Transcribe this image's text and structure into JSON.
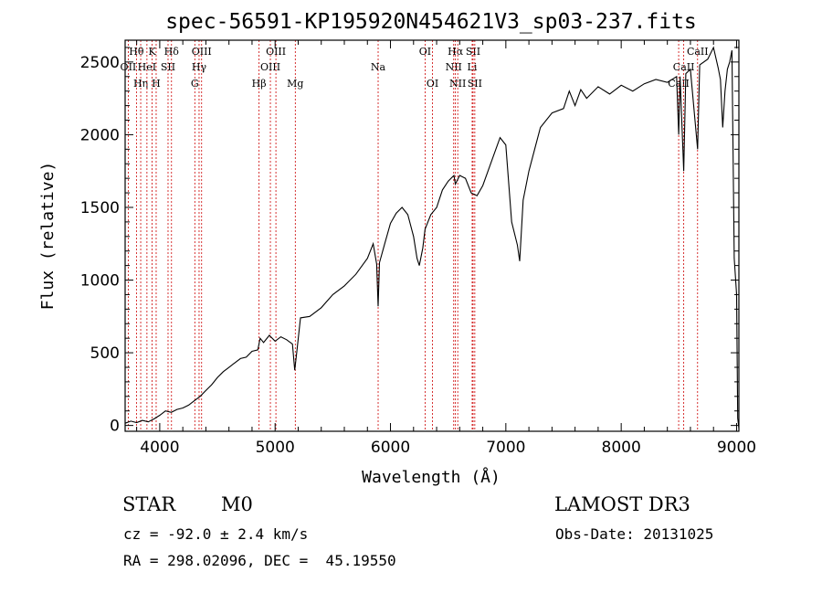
{
  "chart_data": {
    "type": "line",
    "title": "spec-56591-KP195920N454621V3_sp03-237.fits",
    "xlabel": "Wavelength (Å)",
    "ylabel": "Flux (relative)",
    "xlim": [
      3700,
      9020
    ],
    "ylim": [
      -40,
      2650
    ],
    "x_ticks": [
      4000,
      5000,
      6000,
      7000,
      8000,
      9000
    ],
    "y_ticks": [
      0,
      500,
      1000,
      1500,
      2000,
      2500
    ],
    "series": [
      {
        "name": "spectrum",
        "points": [
          [
            3700,
            15
          ],
          [
            3750,
            30
          ],
          [
            3800,
            20
          ],
          [
            3850,
            35
          ],
          [
            3900,
            25
          ],
          [
            3950,
            45
          ],
          [
            4000,
            70
          ],
          [
            4050,
            100
          ],
          [
            4100,
            90
          ],
          [
            4150,
            110
          ],
          [
            4200,
            120
          ],
          [
            4250,
            140
          ],
          [
            4300,
            170
          ],
          [
            4350,
            200
          ],
          [
            4400,
            240
          ],
          [
            4450,
            280
          ],
          [
            4500,
            330
          ],
          [
            4550,
            370
          ],
          [
            4600,
            400
          ],
          [
            4650,
            430
          ],
          [
            4700,
            460
          ],
          [
            4750,
            470
          ],
          [
            4800,
            510
          ],
          [
            4850,
            520
          ],
          [
            4870,
            600
          ],
          [
            4900,
            570
          ],
          [
            4950,
            620
          ],
          [
            5000,
            580
          ],
          [
            5050,
            610
          ],
          [
            5100,
            590
          ],
          [
            5150,
            560
          ],
          [
            5170,
            380
          ],
          [
            5190,
            520
          ],
          [
            5220,
            740
          ],
          [
            5300,
            750
          ],
          [
            5400,
            810
          ],
          [
            5500,
            900
          ],
          [
            5600,
            960
          ],
          [
            5700,
            1040
          ],
          [
            5800,
            1150
          ],
          [
            5850,
            1250
          ],
          [
            5880,
            1110
          ],
          [
            5893,
            820
          ],
          [
            5905,
            1120
          ],
          [
            5950,
            1250
          ],
          [
            6000,
            1390
          ],
          [
            6050,
            1460
          ],
          [
            6100,
            1500
          ],
          [
            6150,
            1450
          ],
          [
            6200,
            1300
          ],
          [
            6230,
            1150
          ],
          [
            6250,
            1100
          ],
          [
            6280,
            1220
          ],
          [
            6300,
            1350
          ],
          [
            6350,
            1450
          ],
          [
            6400,
            1500
          ],
          [
            6450,
            1620
          ],
          [
            6500,
            1680
          ],
          [
            6550,
            1720
          ],
          [
            6563,
            1660
          ],
          [
            6600,
            1720
          ],
          [
            6650,
            1700
          ],
          [
            6700,
            1600
          ],
          [
            6750,
            1580
          ],
          [
            6800,
            1650
          ],
          [
            6850,
            1760
          ],
          [
            6900,
            1870
          ],
          [
            6950,
            1980
          ],
          [
            7000,
            1930
          ],
          [
            7050,
            1400
          ],
          [
            7100,
            1240
          ],
          [
            7120,
            1130
          ],
          [
            7150,
            1550
          ],
          [
            7200,
            1750
          ],
          [
            7250,
            1900
          ],
          [
            7300,
            2050
          ],
          [
            7400,
            2150
          ],
          [
            7500,
            2180
          ],
          [
            7550,
            2300
          ],
          [
            7600,
            2200
          ],
          [
            7650,
            2310
          ],
          [
            7700,
            2250
          ],
          [
            7800,
            2330
          ],
          [
            7900,
            2280
          ],
          [
            8000,
            2340
          ],
          [
            8100,
            2300
          ],
          [
            8200,
            2350
          ],
          [
            8300,
            2380
          ],
          [
            8400,
            2360
          ],
          [
            8480,
            2400
          ],
          [
            8498,
            2000
          ],
          [
            8510,
            2400
          ],
          [
            8542,
            1750
          ],
          [
            8560,
            2420
          ],
          [
            8600,
            2450
          ],
          [
            8662,
            1900
          ],
          [
            8680,
            2480
          ],
          [
            8750,
            2520
          ],
          [
            8800,
            2600
          ],
          [
            8840,
            2460
          ],
          [
            8860,
            2380
          ],
          [
            8880,
            2050
          ],
          [
            8900,
            2300
          ],
          [
            8920,
            2450
          ],
          [
            8940,
            2500
          ],
          [
            8960,
            2580
          ],
          [
            8980,
            1150
          ],
          [
            9000,
            900
          ],
          [
            9010,
            50
          ],
          [
            9020,
            -20
          ]
        ]
      }
    ],
    "spectral_lines": [
      {
        "wave": 3727,
        "label": "OII",
        "row": 1
      },
      {
        "wave": 3798,
        "label": "Hθ",
        "row": 0
      },
      {
        "wave": 3835,
        "label": "Hη",
        "row": 2
      },
      {
        "wave": 3889,
        "label": "HeI",
        "row": 1
      },
      {
        "wave": 3934,
        "label": "K",
        "row": 0
      },
      {
        "wave": 3969,
        "label": "H",
        "row": 2
      },
      {
        "wave": 4072,
        "label": "SII",
        "row": 1
      },
      {
        "wave": 4102,
        "label": "Hδ",
        "row": 0
      },
      {
        "wave": 4304,
        "label": "G",
        "row": 2
      },
      {
        "wave": 4341,
        "label": "Hγ",
        "row": 1
      },
      {
        "wave": 4363,
        "label": "OIII",
        "row": 0
      },
      {
        "wave": 4861,
        "label": "Hβ",
        "row": 2
      },
      {
        "wave": 4959,
        "label": "OIII",
        "row": 1
      },
      {
        "wave": 5007,
        "label": "OIII",
        "row": 0
      },
      {
        "wave": 5175,
        "label": "Mg",
        "row": 2
      },
      {
        "wave": 5893,
        "label": "Na",
        "row": 1
      },
      {
        "wave": 6300,
        "label": "OI",
        "row": 0
      },
      {
        "wave": 6364,
        "label": "OI",
        "row": 2
      },
      {
        "wave": 6548,
        "label": "NII",
        "row": 1
      },
      {
        "wave": 6563,
        "label": "Hα",
        "row": 0
      },
      {
        "wave": 6583,
        "label": "NII",
        "row": 2
      },
      {
        "wave": 6708,
        "label": "Li",
        "row": 1
      },
      {
        "wave": 6716,
        "label": "SII",
        "row": 0
      },
      {
        "wave": 6731,
        "label": "SII",
        "row": 2
      },
      {
        "wave": 8498,
        "label": "CaII",
        "row": 2
      },
      {
        "wave": 8542,
        "label": "CaII",
        "row": 1
      },
      {
        "wave": 8662,
        "label": "CaII",
        "row": 0
      }
    ]
  },
  "info": {
    "class_label": "STAR",
    "subclass": "M0",
    "survey": "LAMOST DR3",
    "cz": "cz = -92.0 ± 2.4 km/s",
    "obs_date": "Obs-Date: 20131025",
    "coords": "RA = 298.02096, DEC =  45.19550"
  }
}
